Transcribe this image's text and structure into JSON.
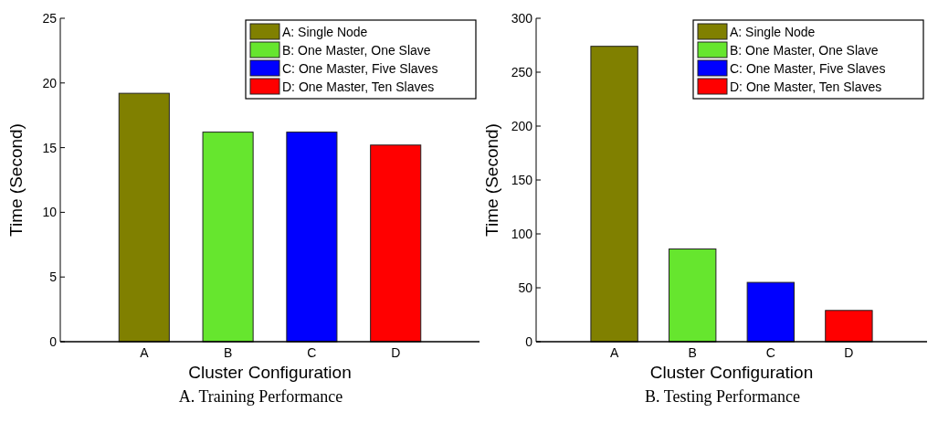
{
  "chart_data": [
    {
      "type": "bar",
      "categories": [
        "A",
        "B",
        "C",
        "D"
      ],
      "xlabel": "Cluster Configuration",
      "ylabel": "Time (Second)",
      "ylim": [
        0,
        25
      ],
      "yticks": [
        0,
        5,
        10,
        15,
        20,
        25
      ],
      "legend": "top right",
      "annotations": [
        "A. Training Performance"
      ],
      "series": [
        {
          "name": "A: Single Node",
          "color": "#808000",
          "values": [
            19.2,
            null,
            null,
            null
          ]
        },
        {
          "name": "B: One Master, One Slave",
          "color": "#66e62e",
          "values": [
            null,
            16.2,
            null,
            null
          ]
        },
        {
          "name": "C: One Master, Five Slaves",
          "color": "#0000ff",
          "values": [
            null,
            null,
            16.2,
            null
          ]
        },
        {
          "name": "D: One Master, Ten Slaves",
          "color": "#ff0000",
          "values": [
            null,
            null,
            null,
            15.2
          ]
        }
      ]
    },
    {
      "type": "bar",
      "categories": [
        "A",
        "B",
        "C",
        "D"
      ],
      "xlabel": "Cluster Configuration",
      "ylabel": "Time (Second)",
      "ylim": [
        0,
        300
      ],
      "yticks": [
        0,
        50,
        100,
        150,
        200,
        250,
        300
      ],
      "legend": "top right",
      "annotations": [
        "B. Testing Performance"
      ],
      "series": [
        {
          "name": "A: Single Node",
          "color": "#808000",
          "values": [
            274,
            null,
            null,
            null
          ]
        },
        {
          "name": "B: One Master, One Slave",
          "color": "#66e62e",
          "values": [
            null,
            86,
            null,
            null
          ]
        },
        {
          "name": "C: One Master, Five Slaves",
          "color": "#0000ff",
          "values": [
            null,
            null,
            55,
            null
          ]
        },
        {
          "name": "D: One Master, Ten Slaves",
          "color": "#ff0000",
          "values": [
            null,
            null,
            null,
            29
          ]
        }
      ]
    }
  ]
}
